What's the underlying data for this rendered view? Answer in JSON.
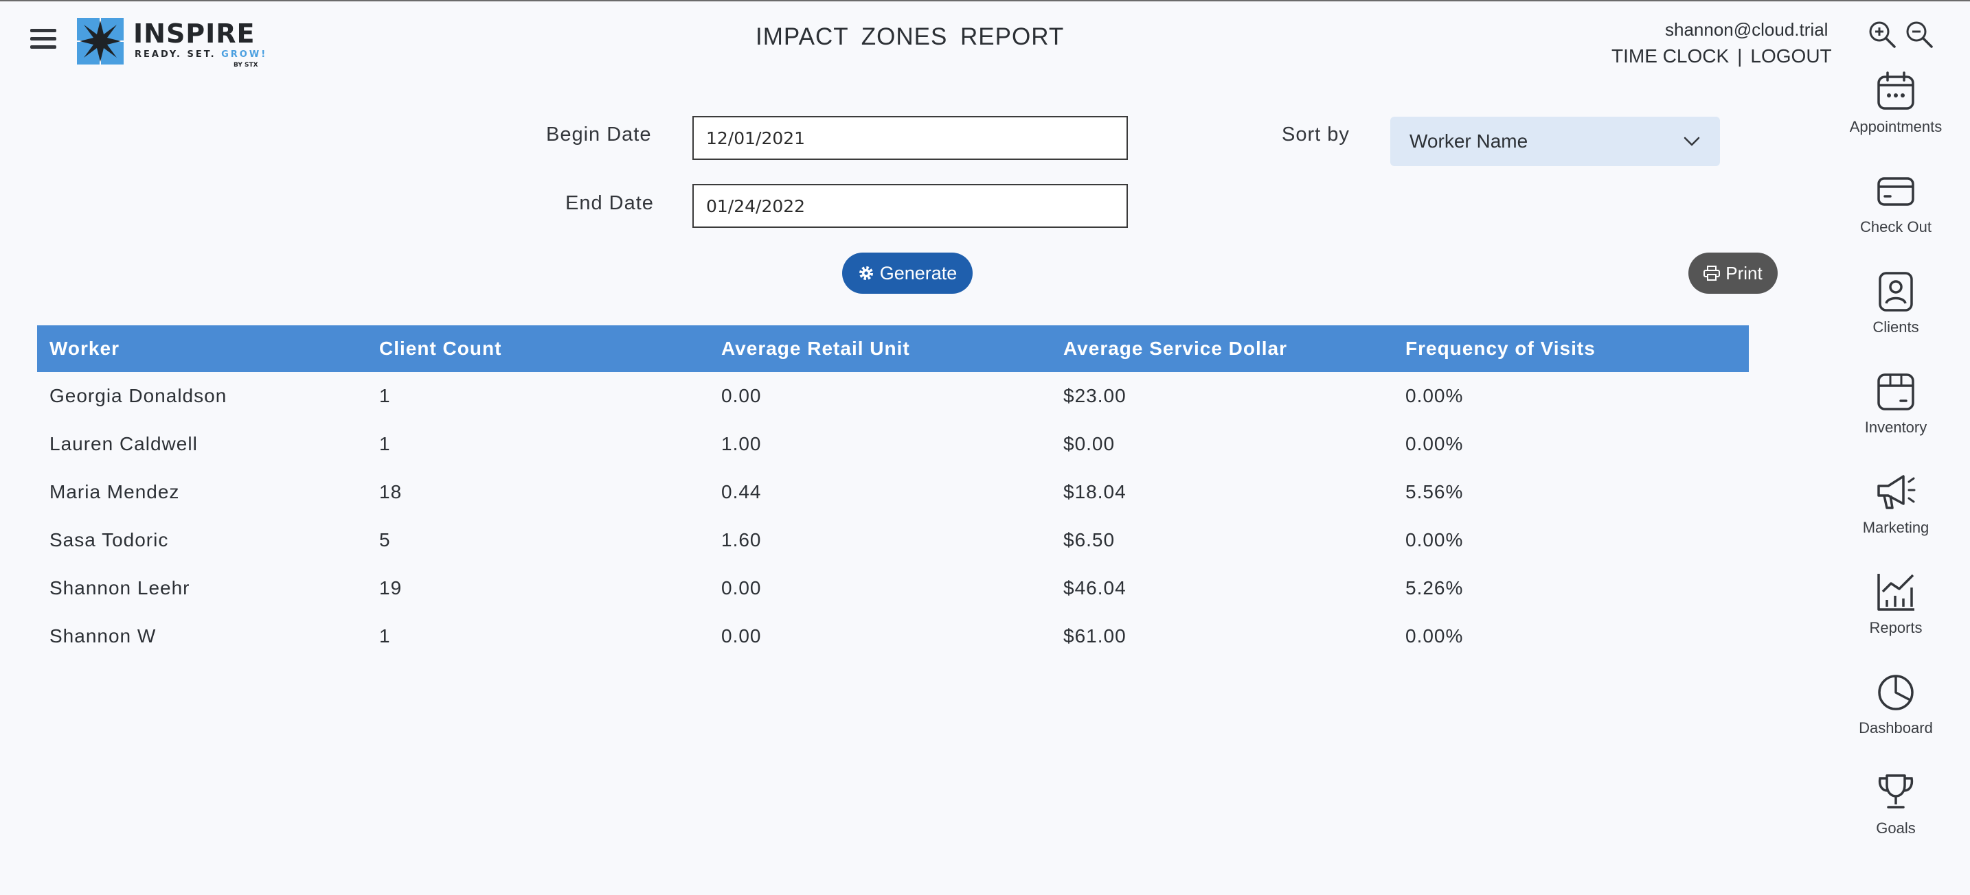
{
  "header": {
    "brand": "INSPIRE",
    "tagline_start": "READY. SET. ",
    "tagline_grow": "GROW!",
    "by_line": "BY STX",
    "title": "IMPACT ZONES REPORT",
    "user_email": "shannon@cloud.trial",
    "time_clock": "TIME CLOCK",
    "separator": "|",
    "logout": "LOGOUT"
  },
  "form": {
    "begin_label": "Begin Date",
    "begin_value": "12/01/2021",
    "end_label": "End Date",
    "end_value": "01/24/2022",
    "sort_label": "Sort by",
    "sort_value": "Worker Name",
    "generate_label": "Generate",
    "print_label": "Print"
  },
  "table": {
    "headers": [
      "Worker",
      "Client Count",
      "Average Retail Unit",
      "Average Service Dollar",
      "Frequency of Visits"
    ],
    "rows": [
      [
        "Georgia Donaldson",
        "1",
        "0.00",
        "$23.00",
        "0.00%"
      ],
      [
        "Lauren Caldwell",
        "1",
        "1.00",
        "$0.00",
        "0.00%"
      ],
      [
        "Maria Mendez",
        "18",
        "0.44",
        "$18.04",
        "5.56%"
      ],
      [
        "Sasa Todoric",
        "5",
        "1.60",
        "$6.50",
        "0.00%"
      ],
      [
        "Shannon Leehr",
        "19",
        "0.00",
        "$46.04",
        "5.26%"
      ],
      [
        "Shannon W",
        "1",
        "0.00",
        "$61.00",
        "0.00%"
      ]
    ]
  },
  "nav": {
    "items": [
      {
        "label": "Appointments",
        "icon": "calendar-icon"
      },
      {
        "label": "Check Out",
        "icon": "credit-card-icon"
      },
      {
        "label": "Clients",
        "icon": "client-badge-icon"
      },
      {
        "label": "Inventory",
        "icon": "box-icon"
      },
      {
        "label": "Marketing",
        "icon": "megaphone-icon"
      },
      {
        "label": "Reports",
        "icon": "chart-icon"
      },
      {
        "label": "Dashboard",
        "icon": "pie-chart-icon"
      },
      {
        "label": "Goals",
        "icon": "trophy-icon"
      }
    ]
  },
  "colors": {
    "table_header": "#4a8bd4",
    "generate_button": "#1f5fad",
    "print_button": "#555555",
    "sort_select_bg": "#dde8f6",
    "logo_blue": "#4a9fe0"
  }
}
